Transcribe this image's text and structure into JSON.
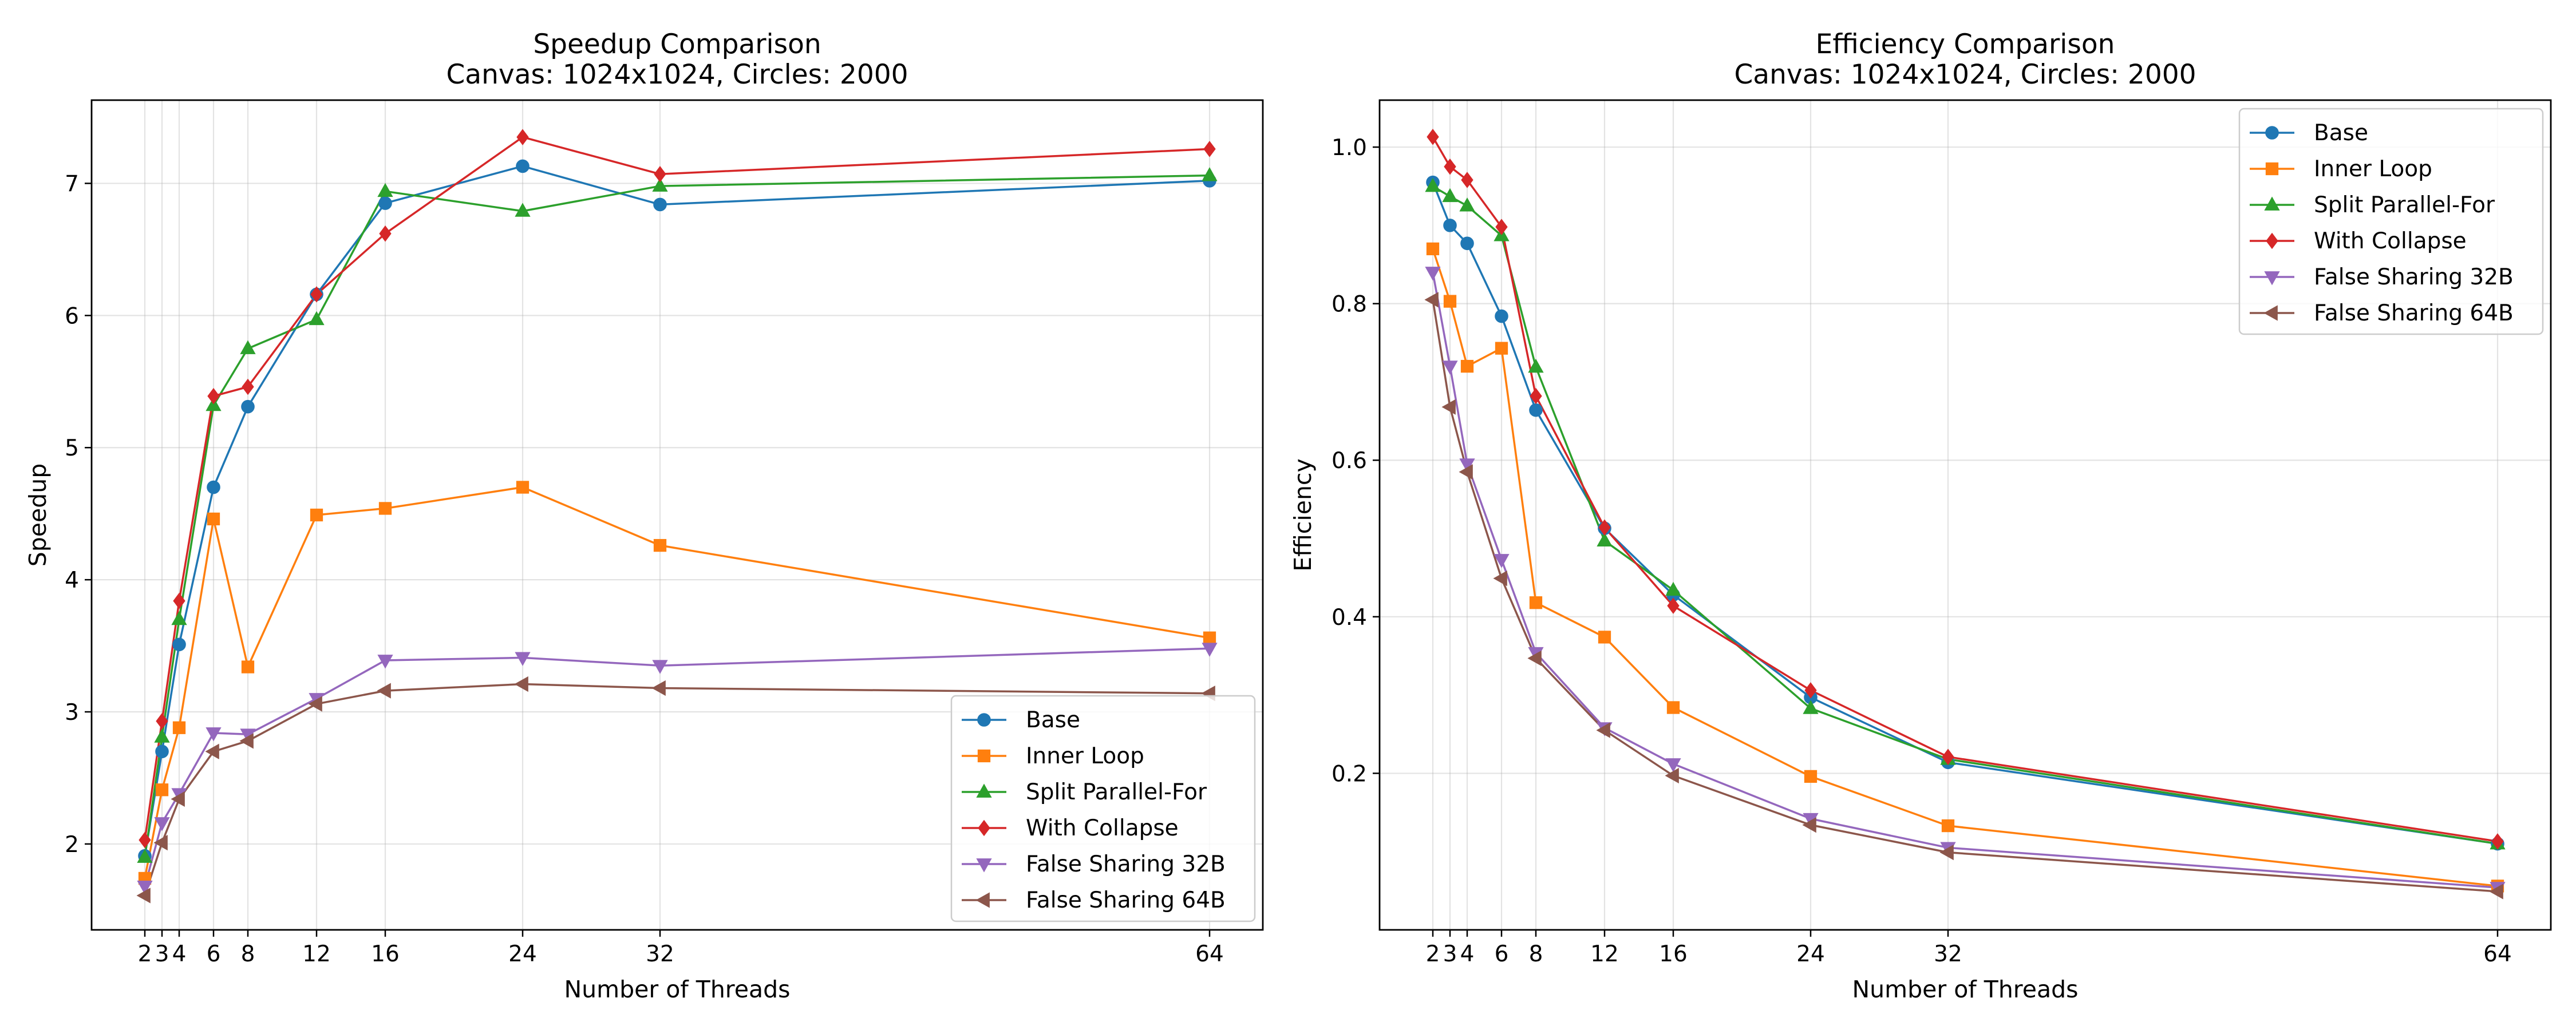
{
  "chart_data": [
    {
      "type": "line",
      "title": "Speedup Comparison",
      "subtitle": "Canvas: 1024x1024, Circles: 2000",
      "xlabel": "Number of Threads",
      "ylabel": "Speedup",
      "x": [
        2,
        3,
        4,
        6,
        8,
        12,
        16,
        24,
        32,
        64
      ],
      "xticks": [
        "2",
        "3",
        "4",
        "6",
        "8",
        "12",
        "16",
        "24",
        "32",
        "64"
      ],
      "yticks": [
        2,
        3,
        4,
        5,
        6,
        7
      ],
      "xlim": [
        -1.1,
        67.1
      ],
      "ylim": [
        1.35,
        7.63
      ],
      "grid": true,
      "legend_position": "lower-right",
      "series": [
        {
          "name": "Base",
          "color": "#1f77b4",
          "marker": "circle",
          "values": [
            1.91,
            2.7,
            3.51,
            4.7,
            5.31,
            6.16,
            6.85,
            7.13,
            6.84,
            7.02
          ]
        },
        {
          "name": "Inner Loop",
          "color": "#ff7f0e",
          "marker": "square",
          "values": [
            1.74,
            2.41,
            2.88,
            4.46,
            3.34,
            4.49,
            4.54,
            4.7,
            4.26,
            3.56
          ]
        },
        {
          "name": "Split Parallel-For",
          "color": "#2ca02c",
          "marker": "triangle-up",
          "values": [
            1.9,
            2.81,
            3.7,
            5.32,
            5.75,
            5.97,
            6.94,
            6.79,
            6.98,
            7.06
          ]
        },
        {
          "name": "With Collapse",
          "color": "#d62728",
          "marker": "diamond",
          "values": [
            2.03,
            2.93,
            3.84,
            5.39,
            5.46,
            6.16,
            6.62,
            7.35,
            7.07,
            7.26
          ]
        },
        {
          "name": "False Sharing 32B",
          "color": "#9467bd",
          "marker": "triangle-down",
          "values": [
            1.68,
            2.16,
            2.38,
            2.84,
            2.83,
            3.1,
            3.39,
            3.41,
            3.35,
            3.48
          ]
        },
        {
          "name": "False Sharing 64B",
          "color": "#8c564b",
          "marker": "triangle-left",
          "values": [
            1.61,
            2.01,
            2.34,
            2.7,
            2.78,
            3.06,
            3.16,
            3.21,
            3.18,
            3.14
          ]
        }
      ]
    },
    {
      "type": "line",
      "title": "Efficiency Comparison",
      "subtitle": "Canvas: 1024x1024, Circles: 2000",
      "xlabel": "Number of Threads",
      "ylabel": "Efficiency",
      "x": [
        2,
        3,
        4,
        6,
        8,
        12,
        16,
        24,
        32,
        64
      ],
      "xticks": [
        "2",
        "3",
        "4",
        "6",
        "8",
        "12",
        "16",
        "24",
        "32",
        "64"
      ],
      "yticks": [
        "0.2",
        "0.4",
        "0.6",
        "0.8",
        "1.0"
      ],
      "xlim": [
        -1.1,
        67.1
      ],
      "ylim": [
        0.0,
        1.06
      ],
      "grid": true,
      "legend_position": "top-right",
      "series": [
        {
          "name": "Base",
          "color": "#1f77b4",
          "marker": "circle",
          "values": [
            0.955,
            0.9,
            0.877,
            0.784,
            0.664,
            0.513,
            0.428,
            0.297,
            0.214,
            0.11
          ]
        },
        {
          "name": "Inner Loop",
          "color": "#ff7f0e",
          "marker": "square",
          "values": [
            0.87,
            0.803,
            0.72,
            0.743,
            0.418,
            0.374,
            0.284,
            0.196,
            0.133,
            0.056
          ]
        },
        {
          "name": "Split Parallel-For",
          "color": "#2ca02c",
          "marker": "triangle-up",
          "values": [
            0.95,
            0.937,
            0.925,
            0.887,
            0.719,
            0.497,
            0.434,
            0.283,
            0.218,
            0.11
          ]
        },
        {
          "name": "With Collapse",
          "color": "#d62728",
          "marker": "diamond",
          "values": [
            1.013,
            0.975,
            0.958,
            0.898,
            0.682,
            0.514,
            0.414,
            0.306,
            0.221,
            0.113
          ]
        },
        {
          "name": "False Sharing 32B",
          "color": "#9467bd",
          "marker": "triangle-down",
          "values": [
            0.84,
            0.72,
            0.595,
            0.473,
            0.354,
            0.258,
            0.212,
            0.142,
            0.105,
            0.054
          ]
        },
        {
          "name": "False Sharing 64B",
          "color": "#8c564b",
          "marker": "triangle-left",
          "values": [
            0.805,
            0.668,
            0.585,
            0.449,
            0.347,
            0.255,
            0.197,
            0.134,
            0.099,
            0.049
          ]
        }
      ]
    }
  ]
}
